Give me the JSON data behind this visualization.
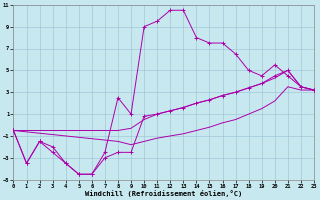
{
  "xlabel": "Windchill (Refroidissement éolien,°C)",
  "bg_color": "#c8e8f0",
  "grid_color": "#a0c8d8",
  "line_color": "#aa00aa",
  "xlim": [
    0,
    23
  ],
  "ylim": [
    -5,
    11
  ],
  "xticks": [
    0,
    1,
    2,
    3,
    4,
    5,
    6,
    7,
    8,
    9,
    10,
    11,
    12,
    13,
    14,
    15,
    16,
    17,
    18,
    19,
    20,
    21,
    22,
    23
  ],
  "yticks": [
    -5,
    -3,
    -1,
    1,
    3,
    5,
    7,
    9,
    11
  ],
  "line1_x": [
    0,
    1,
    2,
    3,
    4,
    5,
    6,
    7,
    8,
    9,
    10,
    11,
    12,
    13,
    14,
    15,
    16,
    17,
    18,
    19,
    20,
    21,
    22,
    23
  ],
  "line1_y": [
    -0.5,
    -3.5,
    -1.5,
    -2.0,
    -3.5,
    -4.5,
    -4.5,
    -2.5,
    2.5,
    1.0,
    9.0,
    9.5,
    10.5,
    10.5,
    8.0,
    7.5,
    7.5,
    6.5,
    5.0,
    4.5,
    5.5,
    4.5,
    3.5,
    3.2
  ],
  "line2_x": [
    0,
    1,
    2,
    3,
    4,
    5,
    6,
    7,
    8,
    9,
    10,
    11,
    12,
    13,
    14,
    15,
    16,
    17,
    18,
    19,
    20,
    21,
    22,
    23
  ],
  "line2_y": [
    -0.5,
    -3.5,
    -1.5,
    -2.5,
    -3.5,
    -4.5,
    -4.5,
    -3.0,
    -2.5,
    -2.5,
    0.8,
    1.0,
    1.3,
    1.6,
    2.0,
    2.3,
    2.7,
    3.0,
    3.4,
    3.8,
    4.5,
    5.0,
    3.5,
    3.2
  ],
  "line3_x": [
    0,
    8,
    9,
    10,
    11,
    12,
    13,
    14,
    15,
    16,
    17,
    18,
    19,
    20,
    21,
    22,
    23
  ],
  "line3_y": [
    -0.5,
    -0.5,
    -0.3,
    0.5,
    1.0,
    1.3,
    1.6,
    2.0,
    2.3,
    2.7,
    3.0,
    3.4,
    3.8,
    4.3,
    5.0,
    3.5,
    3.2
  ],
  "line4_x": [
    0,
    8,
    9,
    10,
    11,
    12,
    13,
    14,
    15,
    16,
    17,
    18,
    19,
    20,
    21,
    22,
    23
  ],
  "line4_y": [
    -0.5,
    -1.5,
    -1.8,
    -1.5,
    -1.2,
    -1.0,
    -0.8,
    -0.5,
    -0.2,
    0.2,
    0.5,
    1.0,
    1.5,
    2.2,
    3.5,
    3.2,
    3.2
  ]
}
